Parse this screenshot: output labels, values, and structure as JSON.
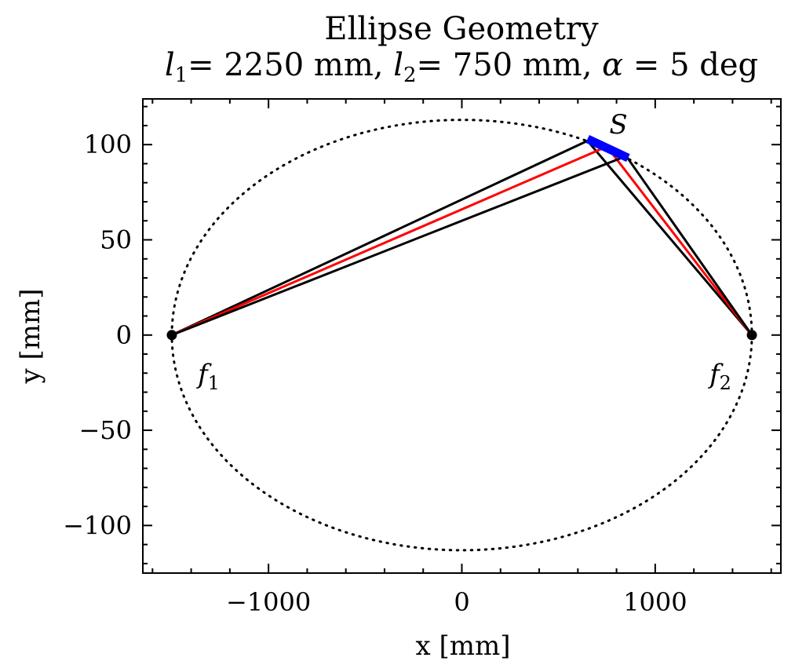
{
  "chart_data": {
    "type": "scatter",
    "title": "Ellipse Geometry",
    "subtitle": {
      "l1_sym": "l",
      "l1_sub": "1",
      "l1_eq": "= 2250 mm, ",
      "l2_sym": "l",
      "l2_sub": "2",
      "l2_eq": "= 750 mm, ",
      "alpha_sym": "α",
      "alpha_eq": " = 5 deg"
    },
    "xlabel": "x [mm]",
    "ylabel": "y [mm]",
    "xlim": [
      -1650,
      1650
    ],
    "ylim": [
      -125,
      124
    ],
    "xticks": [
      -1000,
      0,
      1000
    ],
    "xtick_labels": [
      "−1000",
      "0",
      "1000"
    ],
    "yticks": [
      -100,
      -50,
      0,
      50,
      100
    ],
    "ytick_labels": [
      "−100",
      "−50",
      "0",
      "50",
      "100"
    ],
    "ellipse": {
      "center": [
        0,
        0
      ],
      "semi_major": 1500,
      "semi_minor": 113,
      "style": "dotted"
    },
    "foci": [
      {
        "name": "f",
        "sub": "1",
        "x": -1500,
        "y": 0
      },
      {
        "name": "f",
        "sub": "2",
        "x": 1500,
        "y": 0
      }
    ],
    "mirror": {
      "label": "S",
      "x": [
        650,
        860
      ],
      "y": [
        103,
        93
      ],
      "color": "#0000ff"
    },
    "series": [
      {
        "color": "#000000",
        "x": [
          -1500,
          650,
          1500
        ],
        "y": [
          0,
          102,
          0
        ]
      },
      {
        "color": "#ff0000",
        "x": [
          -1500,
          750,
          1500
        ],
        "y": [
          0,
          99,
          0
        ]
      },
      {
        "color": "#000000",
        "x": [
          -1500,
          850,
          1500
        ],
        "y": [
          0,
          94,
          0
        ]
      }
    ],
    "grid": false,
    "legend": "none"
  }
}
